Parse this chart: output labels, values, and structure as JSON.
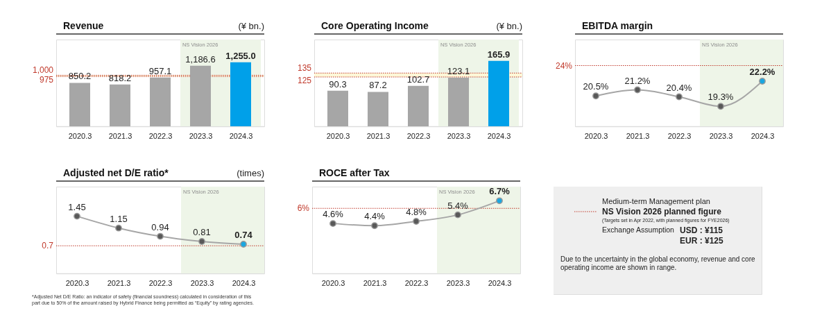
{
  "chart_data": [
    {
      "type": "bar",
      "title": "Revenue",
      "ylabel": "(¥ bn.)",
      "categories": [
        "2020.3",
        "2021.3",
        "2022.3",
        "2023.3",
        "2024.3"
      ],
      "values": [
        850.2,
        818.2,
        957.1,
        1186.6,
        1255.0
      ],
      "value_labels": [
        "850.2",
        "818.2",
        "957.1",
        "1,186.6",
        "1,255.0"
      ],
      "colors": [
        "#a6a6a6",
        "#a6a6a6",
        "#a6a6a6",
        "#a6a6a6",
        "#00a0e9"
      ],
      "ylim": [
        0,
        1700
      ],
      "tick_labels": "x",
      "grid": false,
      "ref_lines": [
        {
          "axis": "y",
          "value": 1000,
          "label": "1,000",
          "color": "#c0392b",
          "line_style": "dotted"
        },
        {
          "axis": "y",
          "value": 975,
          "label": "975",
          "color": "#c0392b",
          "line_style": "dotted"
        }
      ],
      "bands": [
        {
          "axis": "x",
          "from": "2023.3",
          "to": "2024.3",
          "label": "NS Vision 2026",
          "color": "#eef5e8"
        },
        {
          "axis": "y",
          "from": 975,
          "to": 1000,
          "color": "#fdf7d8"
        }
      ]
    },
    {
      "type": "bar",
      "title": "Core Operating Income",
      "ylabel": "(¥ bn.)",
      "categories": [
        "2020.3",
        "2021.3",
        "2022.3",
        "2023.3",
        "2024.3"
      ],
      "values": [
        90.3,
        87.2,
        102.7,
        123.1,
        165.9
      ],
      "value_labels": [
        "90.3",
        "87.2",
        "102.7",
        "123.1",
        "165.9"
      ],
      "colors": [
        "#a6a6a6",
        "#a6a6a6",
        "#a6a6a6",
        "#a6a6a6",
        "#00a0e9"
      ],
      "ylim": [
        0,
        220
      ],
      "tick_labels": "x",
      "grid": false,
      "ref_lines": [
        {
          "axis": "y",
          "value": 135,
          "label": "135",
          "color": "#c0392b",
          "line_style": "dotted"
        },
        {
          "axis": "y",
          "value": 125,
          "label": "125",
          "color": "#c0392b",
          "line_style": "dotted"
        }
      ],
      "bands": [
        {
          "axis": "x",
          "from": "2023.3",
          "to": "2024.3",
          "label": "NS Vision 2026",
          "color": "#eef5e8"
        },
        {
          "axis": "y",
          "from": 125,
          "to": 135,
          "color": "#fdf7d8"
        }
      ]
    },
    {
      "type": "line",
      "title": "EBITDA margin",
      "categories": [
        "2020.3",
        "2021.3",
        "2022.3",
        "2023.3",
        "2024.3"
      ],
      "series": [
        {
          "color": "#a6a6a6",
          "values": [
            20.5,
            21.2,
            20.4,
            19.3,
            22.2
          ],
          "value_labels": [
            "20.5%",
            "21.2%",
            "20.4%",
            "19.3%",
            "22.2%"
          ]
        }
      ],
      "colors": [
        "#595959",
        "#595959",
        "#595959",
        "#595959",
        "#1aa7e0"
      ],
      "marker": "circle",
      "ylim": [
        17,
        27
      ],
      "tick_labels": "x",
      "grid": false,
      "ref_lines": [
        {
          "axis": "y",
          "value": 24,
          "label": "24%",
          "color": "#c0392b",
          "line_style": "dotted"
        }
      ],
      "bands": [
        {
          "axis": "x",
          "from": "2023.3",
          "to": "2024.3",
          "label": "NS Vision 2026",
          "color": "#eef5e8"
        }
      ]
    },
    {
      "type": "line",
      "title": "Adjusted net D/E ratio*",
      "ylabel": "(times)",
      "categories": [
        "2020.3",
        "2021.3",
        "2022.3",
        "2023.3",
        "2024.3"
      ],
      "series": [
        {
          "color": "#a6a6a6",
          "values": [
            1.45,
            1.15,
            0.94,
            0.81,
            0.74
          ],
          "value_labels": [
            "1.45",
            "1.15",
            "0.94",
            "0.81",
            "0.74"
          ]
        }
      ],
      "colors": [
        "#595959",
        "#595959",
        "#595959",
        "#595959",
        "#1aa7e0"
      ],
      "marker": "circle",
      "ylim": [
        0,
        2.2
      ],
      "tick_labels": "x",
      "grid": false,
      "ref_lines": [
        {
          "axis": "y",
          "value": 0.7,
          "label": "0.7",
          "color": "#c0392b",
          "line_style": "dotted"
        }
      ],
      "bands": [
        {
          "axis": "x",
          "from": "2023.3",
          "to": "2024.3",
          "label": "NS Vision 2026",
          "color": "#eef5e8"
        }
      ],
      "annotations": [
        "*Adjusted Net D/E Ratio: an indicator of safety (financial soundness) calculated in consideration of this part due to 50% of the amount raised by Hybrid Finance being permitted as “Equity” by rating agencies."
      ]
    },
    {
      "type": "line",
      "title": "ROCE after Tax",
      "categories": [
        "2020.3",
        "2021.3",
        "2022.3",
        "2023.3",
        "2024.3"
      ],
      "series": [
        {
          "color": "#a6a6a6",
          "values": [
            4.6,
            4.4,
            4.8,
            5.4,
            6.7
          ],
          "value_labels": [
            "4.6%",
            "4.4%",
            "4.8%",
            "5.4%",
            "6.7%"
          ]
        }
      ],
      "colors": [
        "#595959",
        "#595959",
        "#595959",
        "#595959",
        "#1aa7e0"
      ],
      "marker": "circle",
      "ylim": [
        0,
        8
      ],
      "tick_labels": "x",
      "grid": false,
      "ref_lines": [
        {
          "axis": "y",
          "value": 6,
          "label": "6%",
          "color": "#c0392b",
          "line_style": "dotted"
        }
      ],
      "bands": [
        {
          "axis": "x",
          "from": "2023.3",
          "to": "2024.3",
          "label": "NS Vision 2026",
          "color": "#eef5e8"
        }
      ]
    },
    {
      "type": "other",
      "annotations": [
        "Medium-term Management plan",
        "NS Vision 2026 planned figure",
        "(Targets set in Apr 2022, with planned figures for FYE2026)",
        "Exchange Assumption",
        "USD : ¥115",
        "EUR : ¥125",
        "Due to the uncertainty in the global economy, revenue and core operating income are shown in range."
      ]
    }
  ]
}
